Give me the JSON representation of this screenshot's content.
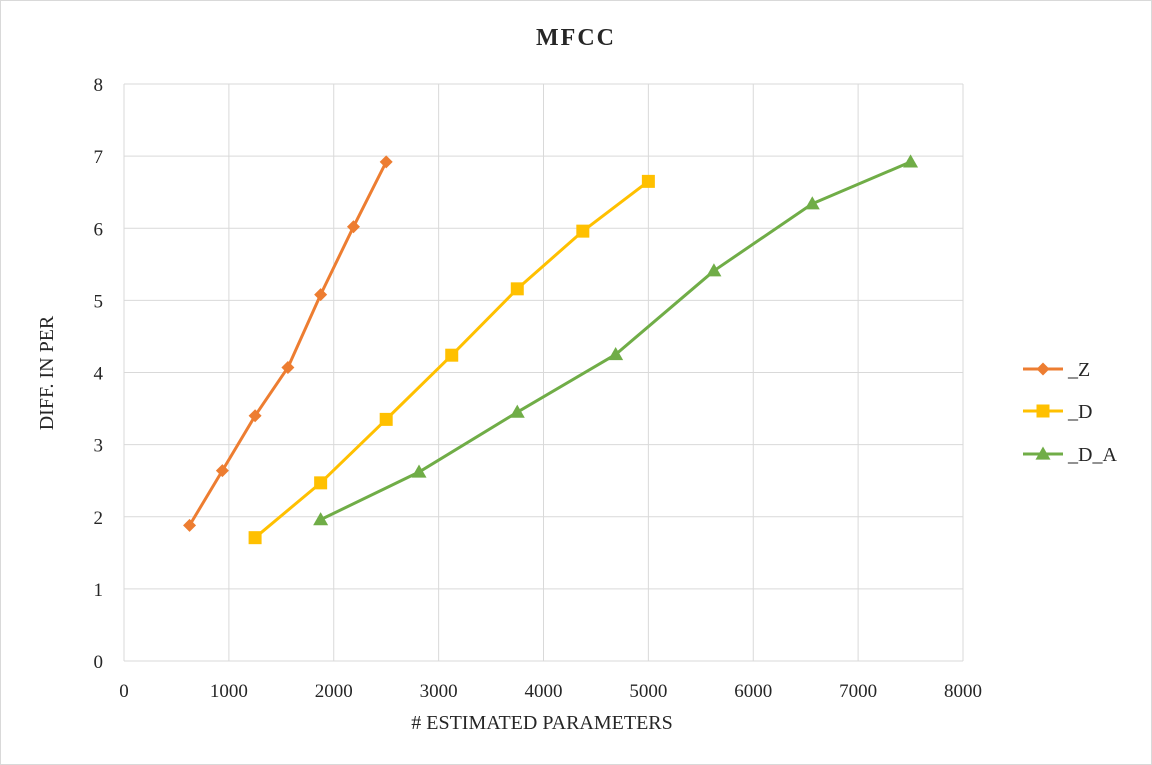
{
  "chart_data": {
    "type": "line",
    "title": "MFCC",
    "xlabel": "# ESTIMATED PARAMETERS",
    "ylabel": "DIFF. IN PER",
    "xlim": [
      0,
      8000
    ],
    "ylim": [
      0,
      8
    ],
    "xticks": [
      0,
      1000,
      2000,
      3000,
      4000,
      5000,
      6000,
      7000,
      8000
    ],
    "yticks": [
      0,
      1,
      2,
      3,
      4,
      5,
      6,
      7,
      8
    ],
    "grid": true,
    "legend_position": "right",
    "series": [
      {
        "name": "_Z",
        "color": "#ED7D31",
        "marker": "diamond",
        "points": [
          [
            625,
            1.88
          ],
          [
            938,
            2.64
          ],
          [
            1250,
            3.4
          ],
          [
            1563,
            4.07
          ],
          [
            1875,
            5.08
          ],
          [
            2188,
            6.02
          ],
          [
            2500,
            6.92
          ]
        ]
      },
      {
        "name": "_D",
        "color": "#FFC000",
        "marker": "square",
        "points": [
          [
            1250,
            1.71
          ],
          [
            1875,
            2.47
          ],
          [
            2500,
            3.35
          ],
          [
            3125,
            4.24
          ],
          [
            3750,
            5.16
          ],
          [
            4375,
            5.96
          ],
          [
            5000,
            6.65
          ]
        ]
      },
      {
        "name": "_D_A",
        "color": "#70AD47",
        "marker": "triangle",
        "points": [
          [
            1875,
            1.96
          ],
          [
            2813,
            2.62
          ],
          [
            3750,
            3.45
          ],
          [
            4688,
            4.25
          ],
          [
            5625,
            5.41
          ],
          [
            6563,
            6.34
          ],
          [
            7500,
            6.92
          ]
        ]
      }
    ]
  }
}
